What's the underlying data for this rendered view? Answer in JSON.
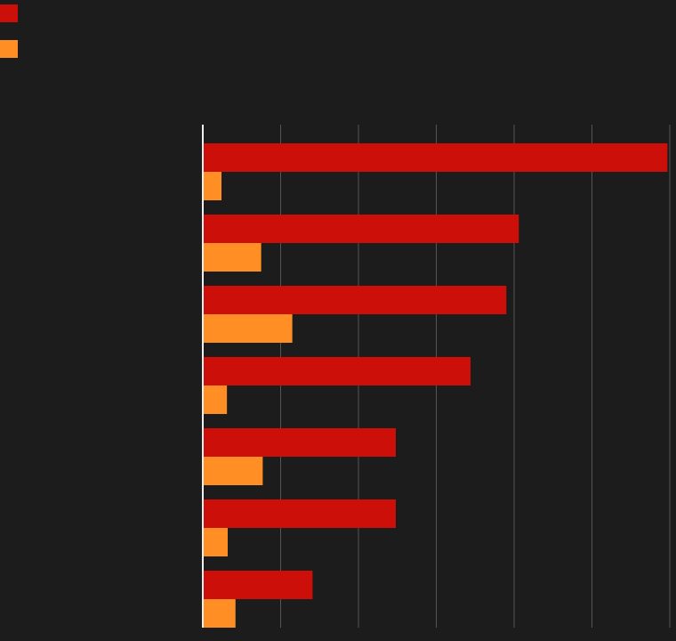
{
  "chart_data": {
    "type": "bar",
    "orientation": "horizontal",
    "categories": [
      null,
      null,
      null,
      null,
      null,
      null,
      null
    ],
    "series": [
      {
        "name": null,
        "color": "#cc1009",
        "values": [
          5.97,
          4.06,
          3.9,
          3.44,
          2.48,
          2.48,
          1.41
        ]
      },
      {
        "name": null,
        "color": "#ff8f24",
        "values": [
          0.24,
          0.75,
          1.15,
          0.31,
          0.77,
          0.32,
          0.42
        ]
      }
    ],
    "xlim": [
      0,
      6
    ],
    "xticks": [
      0,
      1,
      2,
      3,
      4,
      5,
      6
    ],
    "grid": true
  }
}
